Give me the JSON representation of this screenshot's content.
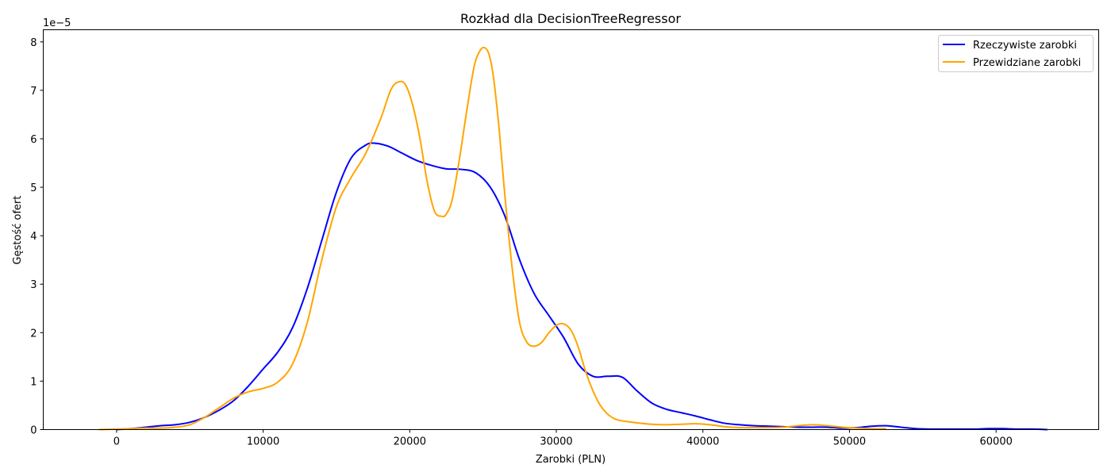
{
  "chart_data": {
    "type": "line",
    "title": "Rozkład dla DecisionTreeRegressor",
    "xlabel": "Zarobki (PLN)",
    "ylabel": "Gęstość ofert",
    "y_offset_label": "1e−5",
    "xlim": [
      -5000,
      67000
    ],
    "ylim": [
      0,
      8.25
    ],
    "y_unit_scale": "1e-5",
    "x_ticks": [
      0,
      10000,
      20000,
      30000,
      40000,
      50000,
      60000
    ],
    "x_tick_labels": [
      "0",
      "10000",
      "20000",
      "30000",
      "40000",
      "50000",
      "60000"
    ],
    "y_ticks": [
      0,
      1,
      2,
      3,
      4,
      5,
      6,
      7,
      8
    ],
    "y_tick_labels": [
      "0",
      "1",
      "2",
      "3",
      "4",
      "5",
      "6",
      "7",
      "8"
    ],
    "grid": false,
    "legend_position": "top-right",
    "series": [
      {
        "name": "Rzeczywiste zarobki",
        "color": "#0000ff",
        "x": [
          0,
          1000,
          2000,
          3000,
          4000,
          5000,
          6000,
          7000,
          8000,
          9000,
          10000,
          11000,
          12000,
          13000,
          14000,
          15000,
          16000,
          17000,
          17600,
          18500,
          19500,
          20500,
          21500,
          22500,
          23500,
          24500,
          25500,
          26500,
          27500,
          28500,
          29500,
          30500,
          31500,
          32500,
          33500,
          34500,
          35500,
          36500,
          37500,
          38500,
          39500,
          40500,
          41500,
          42500,
          43500,
          44500,
          45500,
          46500,
          47500,
          48500,
          49500,
          50500,
          51500,
          52500,
          53500,
          54500,
          55500,
          56500,
          57500,
          58500,
          59500,
          60500,
          61500,
          62500,
          63500
        ],
        "values": [
          0.0,
          0.02,
          0.05,
          0.08,
          0.1,
          0.15,
          0.25,
          0.4,
          0.6,
          0.9,
          1.25,
          1.6,
          2.1,
          2.9,
          3.9,
          4.9,
          5.6,
          5.87,
          5.91,
          5.85,
          5.7,
          5.55,
          5.45,
          5.38,
          5.37,
          5.3,
          5.0,
          4.4,
          3.5,
          2.8,
          2.35,
          1.9,
          1.35,
          1.1,
          1.1,
          1.08,
          0.8,
          0.55,
          0.42,
          0.35,
          0.28,
          0.2,
          0.13,
          0.1,
          0.08,
          0.07,
          0.06,
          0.05,
          0.05,
          0.05,
          0.03,
          0.04,
          0.07,
          0.08,
          0.05,
          0.02,
          0.01,
          0.01,
          0.01,
          0.01,
          0.02,
          0.02,
          0.01,
          0.01,
          0.0
        ]
      },
      {
        "name": "Przewidziane zarobki",
        "color": "#ffa500",
        "x": [
          -1200,
          0,
          1000,
          2000,
          3000,
          4000,
          5000,
          6000,
          7000,
          8000,
          9000,
          10000,
          11000,
          12000,
          13000,
          14000,
          15000,
          16000,
          17000,
          18000,
          18700,
          19200,
          19700,
          20200,
          20700,
          21200,
          21700,
          22200,
          22500,
          22900,
          23400,
          23900,
          24400,
          24800,
          25100,
          25400,
          25700,
          26100,
          26500,
          27000,
          27500,
          28000,
          28500,
          29000,
          29500,
          30000,
          30500,
          31000,
          31500,
          32000,
          32500,
          33000,
          33500,
          34000,
          34500,
          35500,
          36500,
          37500,
          38500,
          39500,
          40500,
          41500,
          42500,
          43500,
          44500,
          45500,
          46500,
          47500,
          48500,
          49500,
          50500,
          51500,
          52500
        ],
        "values": [
          0.0,
          0.01,
          0.02,
          0.03,
          0.03,
          0.05,
          0.1,
          0.25,
          0.45,
          0.65,
          0.78,
          0.85,
          0.98,
          1.35,
          2.2,
          3.5,
          4.6,
          5.2,
          5.7,
          6.4,
          7.0,
          7.17,
          7.12,
          6.7,
          6.0,
          5.1,
          4.5,
          4.4,
          4.45,
          4.75,
          5.6,
          6.6,
          7.5,
          7.82,
          7.88,
          7.75,
          7.3,
          6.2,
          4.8,
          3.3,
          2.2,
          1.8,
          1.72,
          1.8,
          2.0,
          2.15,
          2.18,
          2.05,
          1.7,
          1.2,
          0.8,
          0.5,
          0.32,
          0.22,
          0.18,
          0.14,
          0.11,
          0.1,
          0.11,
          0.12,
          0.1,
          0.06,
          0.04,
          0.04,
          0.04,
          0.05,
          0.08,
          0.1,
          0.08,
          0.05,
          0.03,
          0.02,
          0.02
        ]
      }
    ]
  }
}
